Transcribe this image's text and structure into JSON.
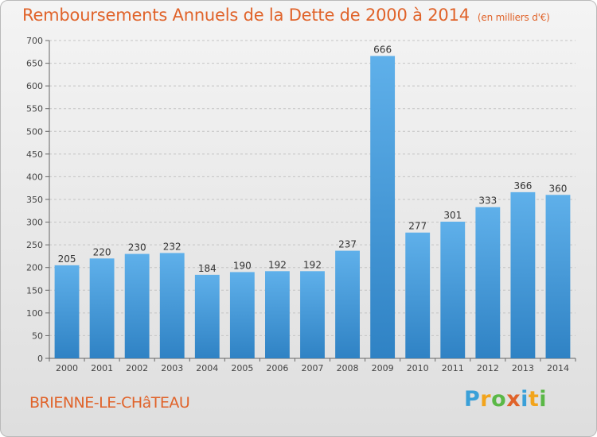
{
  "header": {
    "title": "Remboursements Annuels de la Dette de 2000 à 2014",
    "unit": "(en milliers d'€)"
  },
  "footer": {
    "commune": "BRIENNE-LE-CHâTEAU",
    "logo_text": "Proxiti"
  },
  "colors": {
    "title": "#e0632a",
    "bar_top": "#5fb0ea",
    "bar_bottom": "#2f82c4",
    "grid": "#c4c4c4"
  },
  "chart_data": {
    "type": "bar",
    "title": "Remboursements Annuels de la Dette de 2000 à 2014",
    "subtitle": "(en milliers d'€)",
    "categories": [
      "2000",
      "2001",
      "2002",
      "2003",
      "2004",
      "2005",
      "2006",
      "2007",
      "2008",
      "2009",
      "2010",
      "2011",
      "2012",
      "2013",
      "2014"
    ],
    "values": [
      205,
      220,
      230,
      232,
      184,
      190,
      192,
      192,
      237,
      666,
      277,
      301,
      333,
      366,
      360
    ],
    "ylim": [
      0,
      700
    ],
    "yticks": [
      0,
      50,
      100,
      150,
      200,
      250,
      300,
      350,
      400,
      450,
      500,
      550,
      600,
      650,
      700
    ],
    "grid": true,
    "data_labels": true
  }
}
